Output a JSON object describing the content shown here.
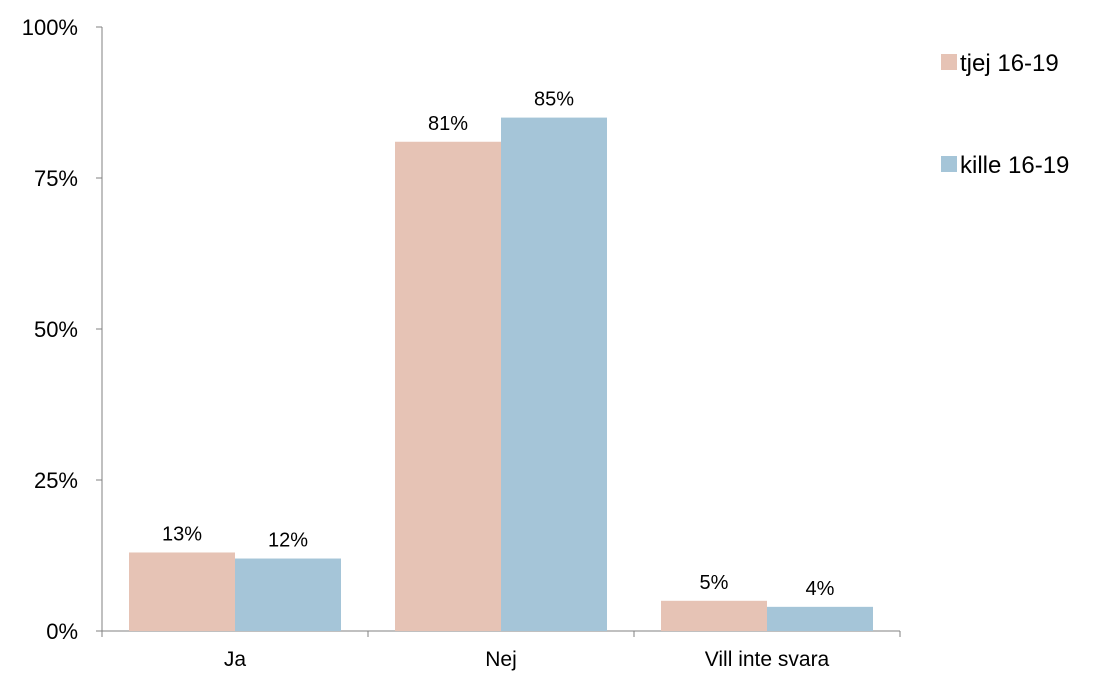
{
  "chart_data": {
    "type": "bar",
    "categories": [
      "Ja",
      "Nej",
      "Vill inte svara"
    ],
    "series": [
      {
        "name": "tjej 16-19",
        "values": [
          13,
          81,
          5
        ],
        "labels": [
          "13%",
          "81%",
          "5%"
        ],
        "color": "#e6c3b5"
      },
      {
        "name": "kille 16-19",
        "values": [
          12,
          85,
          4
        ],
        "labels": [
          "12%",
          "85%",
          "4%"
        ],
        "color": "#a5c5d8"
      }
    ],
    "title": "",
    "xlabel": "",
    "ylabel": "",
    "ylim": [
      0,
      100
    ],
    "yticks": [
      0,
      25,
      50,
      75,
      100
    ],
    "ytick_labels": [
      "0%",
      "25%",
      "50%",
      "75%",
      "100%"
    ],
    "grid": false,
    "legend_position": "right"
  }
}
